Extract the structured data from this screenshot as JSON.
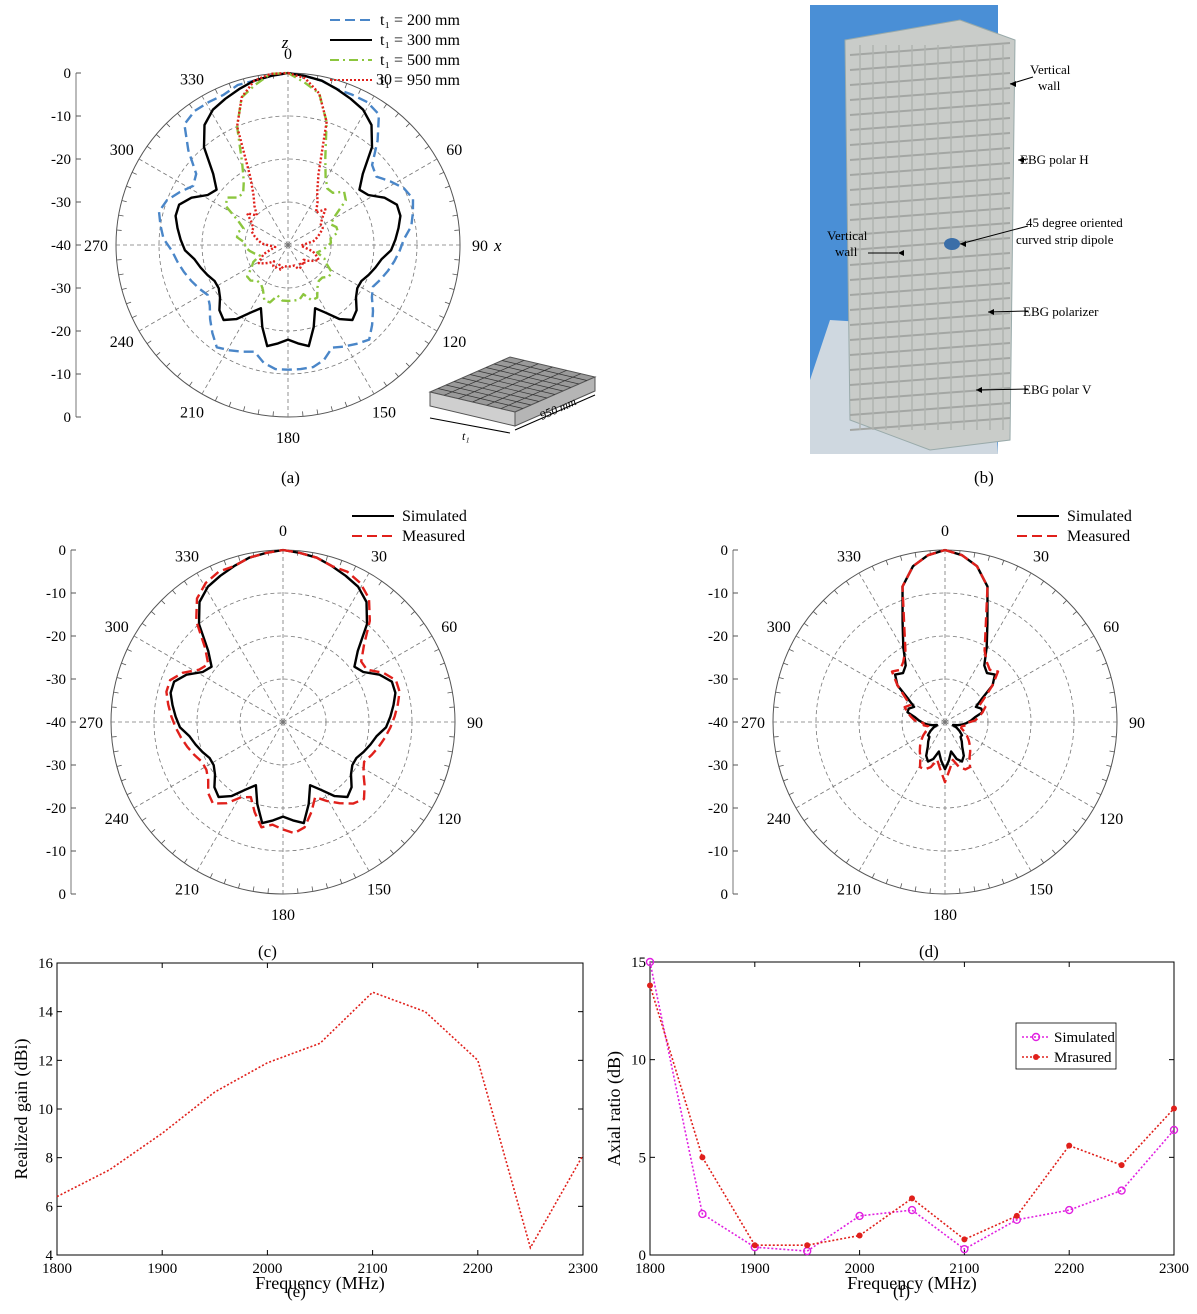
{
  "panels": {
    "a": {
      "caption": "(a)",
      "axis_z": "z",
      "axis_x": "x",
      "legend": [
        "t₁ = 200 mm",
        "t₁ = 300 mm",
        "t₁ = 500 mm",
        "t₁ = 950 mm"
      ],
      "inset_dim_length": "950 mm",
      "inset_dim_thickness": "t₁"
    },
    "b": {
      "caption": "(b)",
      "labels": [
        "Vertical wall",
        "EBG polar H",
        "45 degree oriented curved strip dipole",
        "Vertical wall",
        "EBG polarizer",
        "EBG polar V"
      ]
    },
    "c": {
      "caption": "(c)",
      "legend": [
        "Simulated",
        "Measured"
      ]
    },
    "d": {
      "caption": "(d)",
      "legend": [
        "Simulated",
        "Measured"
      ]
    },
    "e": {
      "caption": "(e)"
    },
    "f": {
      "caption": "(f)",
      "legend": [
        "Simulated",
        "Mrasured"
      ]
    }
  },
  "chart_data": [
    {
      "panel": "a",
      "type": "polar",
      "angle_ticks": [
        "0",
        "30",
        "60",
        "90",
        "120",
        "150",
        "180",
        "210",
        "240",
        "270",
        "300",
        "330"
      ],
      "radial_ticks": [
        "0",
        "-10",
        "-20",
        "-30",
        "-40",
        "-30",
        "-20",
        "-10",
        "0"
      ],
      "rlim": [
        -40,
        0
      ],
      "series": [
        {
          "name": "t₁ = 200 mm",
          "color": "#4a86c8",
          "dash": "dashed",
          "values": [
            0,
            -0.5,
            -1,
            -2,
            -2,
            -2,
            -3,
            -8,
            -13,
            -14,
            -12,
            -10,
            -9,
            -10,
            -11,
            -13,
            -14,
            -15,
            -16,
            -17,
            -18,
            -17,
            -15,
            -13,
            -11,
            -12,
            -13,
            -14,
            -12,
            -11,
            -11,
            -11,
            -11,
            -12,
            -14,
            -13,
            -12,
            -11,
            -13,
            -15,
            -17,
            -18,
            -17,
            -16,
            -15,
            -14,
            -13,
            -11,
            -10,
            -9,
            -10,
            -12,
            -14,
            -13,
            -8,
            -3,
            -2,
            -2,
            -2,
            -1,
            -1,
            -0.5
          ]
        },
        {
          "name": "t₁ = 300 mm",
          "color": "#000000",
          "dash": "solid",
          "values": [
            0,
            -0.5,
            -1,
            -2,
            -3,
            -4,
            -6,
            -10,
            -16,
            -19,
            -18,
            -15,
            -13,
            -13,
            -14,
            -15,
            -16,
            -18,
            -19,
            -20,
            -21,
            -21,
            -20,
            -18,
            -17,
            -19,
            -22,
            -24,
            -20,
            -16,
            -17,
            -18,
            -17,
            -16,
            -20,
            -24,
            -22,
            -19,
            -17,
            -18,
            -20,
            -21,
            -21,
            -20,
            -19,
            -18,
            -16,
            -15,
            -14,
            -13,
            -13,
            -15,
            -18,
            -19,
            -16,
            -10,
            -6,
            -4,
            -3,
            -2,
            -1,
            -0.5
          ]
        },
        {
          "name": "t₁ = 500 mm",
          "color": "#8cc63e",
          "dash": "dashdot",
          "values": [
            0,
            -2,
            -4,
            -10,
            -18,
            -22,
            -24,
            -24,
            -22,
            -23,
            -27,
            -29,
            -28,
            -28,
            -30,
            -30,
            -31,
            -32,
            -33,
            -31,
            -30,
            -28,
            -28,
            -29,
            -29,
            -28,
            -26,
            -26,
            -28,
            -27,
            -27,
            -27,
            -27,
            -28,
            -26,
            -26,
            -28,
            -29,
            -29,
            -28,
            -28,
            -30,
            -31,
            -33,
            -32,
            -31,
            -30,
            -30,
            -28,
            -28,
            -29,
            -27,
            -23,
            -22,
            -24,
            -24,
            -22,
            -18,
            -10,
            -4,
            -2,
            0
          ]
        },
        {
          "name": "t₁ = 950 mm",
          "color": "#e0201b",
          "dash": "dotted",
          "values": [
            0,
            -1,
            -4,
            -10,
            -22,
            -26,
            -28,
            -30,
            -28,
            -30,
            -31,
            -31,
            -32,
            -33,
            -34,
            -36,
            -37,
            -36,
            -34,
            -33,
            -32,
            -33,
            -34,
            -35,
            -34,
            -35,
            -34,
            -34,
            -35,
            -35,
            -35,
            -35,
            -35,
            -35,
            -34,
            -35,
            -34,
            -34,
            -35,
            -34,
            -33,
            -32,
            -33,
            -34,
            -36,
            -37,
            -36,
            -34,
            -33,
            -32,
            -31,
            -31,
            -30,
            -28,
            -30,
            -28,
            -26,
            -22,
            -10,
            -4,
            -1,
            0
          ]
        }
      ]
    },
    {
      "panel": "c",
      "type": "polar",
      "angle_ticks": [
        "0",
        "30",
        "60",
        "90",
        "120",
        "150",
        "180",
        "210",
        "240",
        "270",
        "300",
        "330"
      ],
      "radial_ticks": [
        "0",
        "-10",
        "-20",
        "-30",
        "-40",
        "-30",
        "-20",
        "-10",
        "0"
      ],
      "rlim": [
        -40,
        0
      ],
      "series": [
        {
          "name": "Simulated",
          "color": "#000000",
          "dash": "solid",
          "values": [
            0,
            -0.5,
            -1,
            -2,
            -3,
            -4,
            -6,
            -10,
            -16,
            -19,
            -18,
            -15,
            -13,
            -13,
            -14,
            -15,
            -16,
            -18,
            -19,
            -20,
            -21,
            -21,
            -20,
            -18,
            -17,
            -19,
            -22,
            -24,
            -20,
            -16,
            -17,
            -18,
            -17,
            -16,
            -20,
            -24,
            -22,
            -19,
            -17,
            -18,
            -20,
            -21,
            -21,
            -20,
            -19,
            -18,
            -16,
            -15,
            -14,
            -13,
            -13,
            -15,
            -18,
            -19,
            -16,
            -10,
            -6,
            -4,
            -3,
            -2,
            -1,
            -0.5
          ]
        },
        {
          "name": "Measured",
          "color": "#e0201b",
          "dash": "dashed",
          "values": [
            0,
            -0.5,
            -1,
            -2,
            -2,
            -3,
            -5,
            -9,
            -14,
            -17,
            -17,
            -14,
            -12,
            -12,
            -13,
            -14,
            -15,
            -16,
            -17,
            -18,
            -19,
            -18,
            -16,
            -14,
            -15,
            -17,
            -19,
            -21,
            -18,
            -15,
            -14,
            -15,
            -16,
            -15,
            -18,
            -21,
            -20,
            -17,
            -15,
            -16,
            -18,
            -19,
            -19,
            -18,
            -17,
            -16,
            -15,
            -14,
            -13,
            -12,
            -12,
            -14,
            -17,
            -18,
            -15,
            -9,
            -5,
            -3,
            -2,
            -2,
            -1,
            -0.5
          ]
        }
      ]
    },
    {
      "panel": "d",
      "type": "polar",
      "angle_ticks": [
        "0",
        "30",
        "60",
        "90",
        "120",
        "150",
        "180",
        "210",
        "240",
        "270",
        "300",
        "330"
      ],
      "radial_ticks": [
        "0",
        "-10",
        "-20",
        "-30",
        "-40",
        "-30",
        "-20",
        "-10",
        "0"
      ],
      "rlim": [
        -40,
        0
      ],
      "series": [
        {
          "name": "Simulated",
          "color": "#000000",
          "dash": "solid",
          "values": [
            0,
            -1,
            -3,
            -7,
            -15,
            -20,
            -24,
            -25,
            -24,
            -26,
            -30,
            -32,
            -31,
            -31,
            -33,
            -34,
            -35,
            -36,
            -37,
            -38,
            -37,
            -36,
            -35,
            -35,
            -34,
            -33,
            -31,
            -30,
            -31,
            -33,
            -31,
            -29,
            -31,
            -33,
            -31,
            -30,
            -31,
            -33,
            -34,
            -35,
            -35,
            -36,
            -37,
            -38,
            -37,
            -36,
            -35,
            -34,
            -33,
            -31,
            -31,
            -32,
            -30,
            -26,
            -24,
            -25,
            -24,
            -20,
            -15,
            -7,
            -3,
            -1
          ]
        },
        {
          "name": "Measured",
          "color": "#e0201b",
          "dash": "dashed",
          "values": [
            0,
            -1,
            -3,
            -7,
            -16,
            -21,
            -23,
            -24,
            -23,
            -26,
            -29,
            -31,
            -30,
            -31,
            -32,
            -33,
            -35,
            -35,
            -36,
            -36,
            -35,
            -34,
            -33,
            -32,
            -31,
            -30,
            -28,
            -28,
            -29,
            -31,
            -29,
            -26,
            -29,
            -31,
            -29,
            -28,
            -28,
            -30,
            -31,
            -32,
            -33,
            -34,
            -35,
            -36,
            -36,
            -35,
            -35,
            -33,
            -32,
            -31,
            -30,
            -31,
            -29,
            -26,
            -23,
            -24,
            -23,
            -21,
            -16,
            -7,
            -3,
            -1
          ]
        }
      ]
    },
    {
      "panel": "e",
      "type": "line",
      "xlabel": "Frequency (MHz)",
      "ylabel": "Realized gain (dBi)",
      "xlim": [
        1800,
        2300
      ],
      "ylim": [
        4,
        16
      ],
      "xticks": [
        1800,
        1900,
        2000,
        2100,
        2200,
        2300
      ],
      "yticks": [
        4,
        6,
        8,
        10,
        12,
        14,
        16
      ],
      "x": [
        1800,
        1850,
        1900,
        1950,
        2000,
        2050,
        2100,
        2150,
        2200,
        2250,
        2300
      ],
      "series": [
        {
          "color": "#e0201b",
          "values": [
            6.4,
            7.5,
            9.0,
            10.7,
            11.9,
            12.7,
            14.8,
            14.0,
            12.0,
            4.3,
            8.1
          ]
        }
      ]
    },
    {
      "panel": "f",
      "type": "line",
      "xlabel": "Frequency (MHz)",
      "ylabel": "Axial ratio (dB)",
      "xlim": [
        1800,
        2300
      ],
      "ylim": [
        0,
        15
      ],
      "xticks": [
        1800,
        1900,
        2000,
        2100,
        2200,
        2300
      ],
      "yticks": [
        0,
        5,
        10,
        15
      ],
      "legend_position": "top-right",
      "x": [
        1800,
        1850,
        1900,
        1950,
        2000,
        2050,
        2100,
        2150,
        2200,
        2250,
        2300
      ],
      "series": [
        {
          "name": "Simulated",
          "color": "#e020e0",
          "marker": "open-circle",
          "values": [
            15.0,
            2.1,
            0.4,
            0.2,
            2.0,
            2.3,
            0.3,
            1.8,
            2.3,
            3.3,
            6.4
          ]
        },
        {
          "name": "Mrasured",
          "color": "#e0201b",
          "marker": "filled-dot",
          "values": [
            13.8,
            5.0,
            0.5,
            0.5,
            1.0,
            2.9,
            0.8,
            2.0,
            5.6,
            4.6,
            7.5
          ]
        }
      ]
    }
  ]
}
